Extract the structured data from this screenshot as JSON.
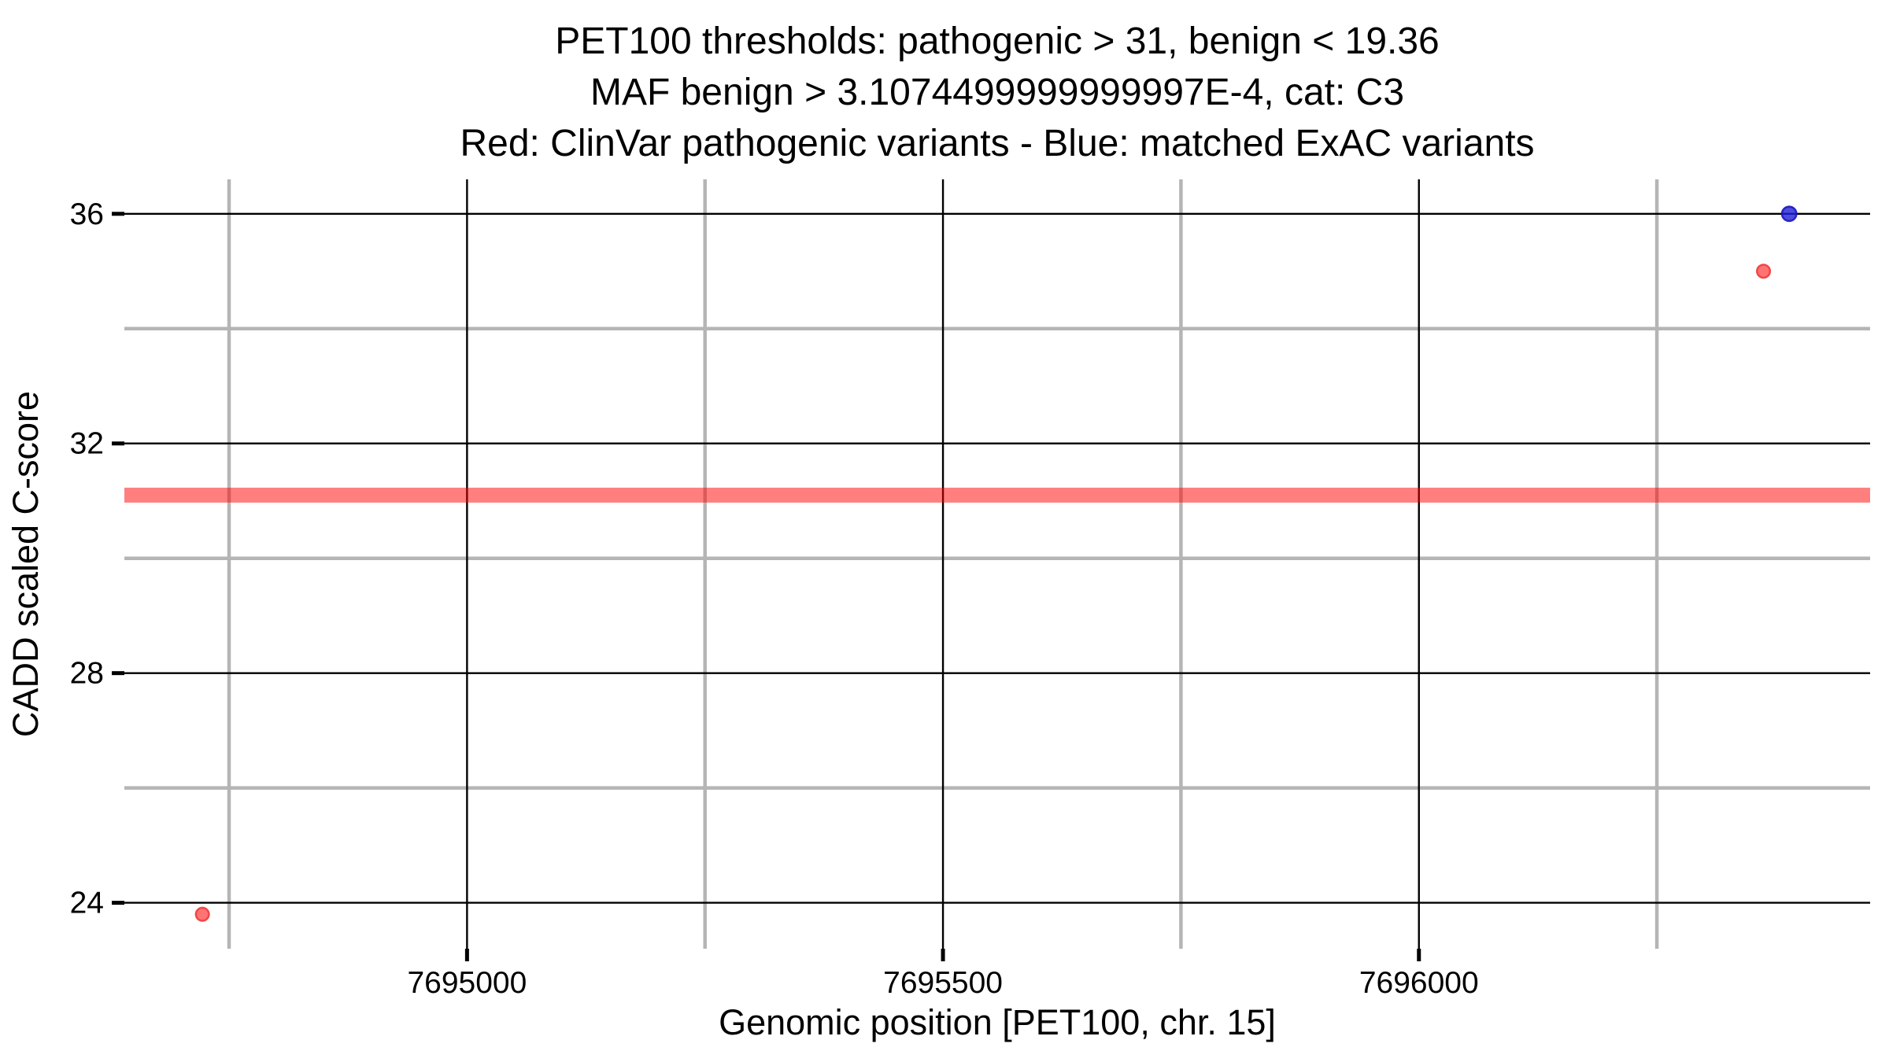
{
  "chart_data": {
    "type": "scatter",
    "title_lines": [
      "PET100 thresholds: pathogenic > 31, benign < 19.36",
      "MAF benign > 3.1074499999999997E-4, cat: C3",
      "Red: ClinVar pathogenic variants - Blue: matched ExAC variants"
    ],
    "xlabel": "Genomic position [PET100, chr. 15]",
    "ylabel": "CADD scaled C-score",
    "xlim": [
      7694640,
      7696474
    ],
    "ylim": [
      23.2,
      36.6
    ],
    "x_major_ticks": [
      7695000,
      7695500,
      7696000
    ],
    "x_major_tick_labels": [
      "7695000",
      "7695500",
      "7696000"
    ],
    "x_minor_ticks": [
      7694750,
      7695250,
      7695750,
      7696250
    ],
    "y_major_ticks": [
      24,
      28,
      32,
      36
    ],
    "y_major_tick_labels": [
      "24",
      "28",
      "32",
      "36"
    ],
    "y_minor_ticks": [
      26,
      30,
      34
    ],
    "grid": {
      "major_color": "#000000",
      "minor_color": "#b5b5b5",
      "major_width": 2.4,
      "minor_width": 4.5,
      "background": "#ffffff"
    },
    "hline": {
      "y": 31.1,
      "color": "#FF0000",
      "opacity": 0.5,
      "thickness_px": 19,
      "meaning": "pathogenic threshold"
    },
    "series": [
      {
        "name": "ClinVar pathogenic variants",
        "color_word": "Red",
        "marker": "circle",
        "fill": "#FF0000",
        "fill_opacity": 0.55,
        "stroke": "#EF3B3B",
        "stroke_opacity": 0.9,
        "radius": 8.3,
        "points": [
          {
            "x": 7694722,
            "y": 23.8
          },
          {
            "x": 7696362,
            "y": 35.0
          }
        ]
      },
      {
        "name": "matched ExAC variants",
        "color_word": "Blue",
        "marker": "circle",
        "fill": "#1F1FD8",
        "fill_opacity": 0.8,
        "stroke": "#1A1AB8",
        "stroke_opacity": 0.9,
        "radius": 9.2,
        "points": [
          {
            "x": 7696389,
            "y": 36.0
          }
        ]
      }
    ],
    "legend_position": "none"
  }
}
